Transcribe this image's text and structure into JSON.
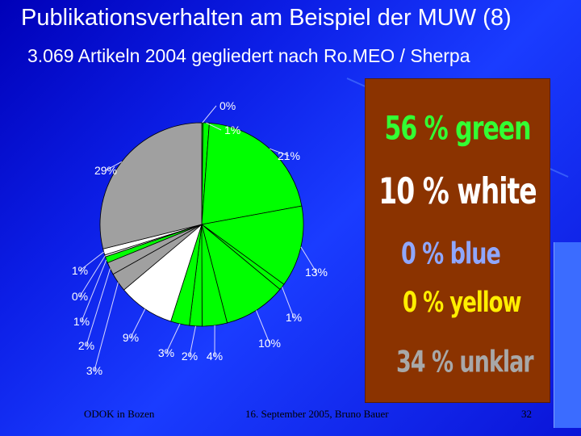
{
  "slide": {
    "title": "Publikationsverhalten am Beispiel der MUW (8)",
    "subtitle": "3.069 Artikeln 2004 gegliedert nach Ro.MEO / Sherpa"
  },
  "chart_data": {
    "type": "pie",
    "colors": {
      "green": "#00ff00",
      "white": "#ffffff",
      "grey": "#a0a0a0",
      "outline": "#000000"
    },
    "slices": [
      {
        "label": "0%",
        "value": 0.2,
        "color": "green"
      },
      {
        "label": "1%",
        "value": 1,
        "color": "green"
      },
      {
        "label": "21%",
        "value": 21,
        "color": "green"
      },
      {
        "label": "13%",
        "value": 13,
        "color": "green"
      },
      {
        "label": "1%",
        "value": 1,
        "color": "green"
      },
      {
        "label": "10%",
        "value": 10,
        "color": "green"
      },
      {
        "label": "4%",
        "value": 4,
        "color": "green"
      },
      {
        "label": "2%",
        "value": 2,
        "color": "green"
      },
      {
        "label": "3%",
        "value": 3,
        "color": "green"
      },
      {
        "label": "9%",
        "value": 9,
        "color": "white"
      },
      {
        "label": "3%",
        "value": 3,
        "color": "grey"
      },
      {
        "label": "2%",
        "value": 2,
        "color": "grey"
      },
      {
        "label": "1%",
        "value": 1,
        "color": "green"
      },
      {
        "label": "0%",
        "value": 0.3,
        "color": "white"
      },
      {
        "label": "1%",
        "value": 1,
        "color": "white"
      },
      {
        "label": "29%",
        "value": 29,
        "color": "grey"
      }
    ]
  },
  "summary": {
    "green": "56 % green",
    "white": "10 % white",
    "blue": "0 % blue",
    "yellow": "0 % yellow",
    "unklar": "34 % unklar"
  },
  "footer": {
    "left": "ODOK in Bozen",
    "center": "16. September 2005, Bruno Bauer",
    "page": "32"
  }
}
